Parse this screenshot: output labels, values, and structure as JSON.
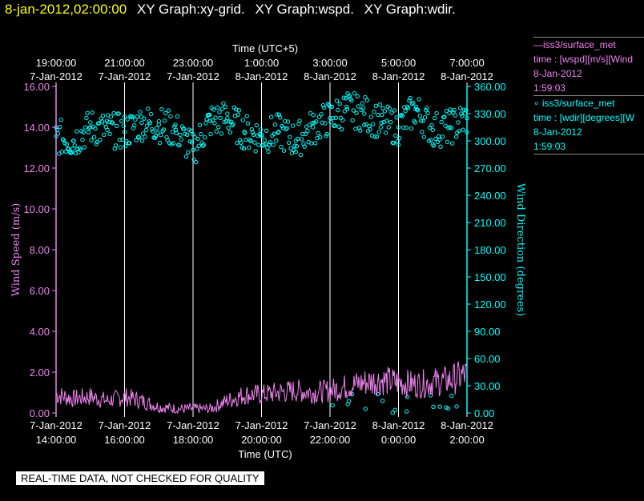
{
  "header": {
    "timestamp": "8-jan-2012,02:00:00",
    "title1": "XY Graph:xy-grid.",
    "title2": "XY Graph:wspd.",
    "title3": "XY Graph:wdir."
  },
  "legend": {
    "wspd": {
      "name": "—iss3/surface_met",
      "var": "time : [wspd][m/s][Wind",
      "date": "8-Jan-2012",
      "time": "1:59:03"
    },
    "wdir": {
      "name": "∘ iss3/surface_met",
      "var": "time : [wdir][degrees][W",
      "date": "8-Jan-2012",
      "time": "1:59:03"
    }
  },
  "footer": "REAL-TIME DATA, NOT CHECKED FOR QUALITY",
  "colors": {
    "wspd": "#ee82ee",
    "wdir": "#00ffff",
    "grid": "#ffffff",
    "axis_left": "#ee82ee",
    "axis_right": "#00ffff"
  },
  "chart_data": {
    "type": "line",
    "top_axis_title": "Time (UTC+5)",
    "bottom_axis_title": "Time (UTC)",
    "ylabel": "Wind Speed (m/s)",
    "y2label": "Wind Direction (degrees)",
    "x_range_hours": [
      0,
      12
    ],
    "ylim": [
      0,
      16
    ],
    "y2lim": [
      0,
      360
    ],
    "y_ticks": [
      "0.00",
      "2.00",
      "4.00",
      "6.00",
      "8.00",
      "10.00",
      "12.00",
      "14.00",
      "16.00"
    ],
    "y2_ticks": [
      "0.00",
      "30.00",
      "60.00",
      "90.00",
      "120.00",
      "150.00",
      "180.00",
      "210.00",
      "240.00",
      "270.00",
      "300.00",
      "330.00",
      "360.00"
    ],
    "bottom_ticks": [
      {
        "hour": 0,
        "date": "7-Jan-2012",
        "time": "14:00:00"
      },
      {
        "hour": 2,
        "date": "7-Jan-2012",
        "time": "16:00:00"
      },
      {
        "hour": 4,
        "date": "7-Jan-2012",
        "time": "18:00:00"
      },
      {
        "hour": 6,
        "date": "7-Jan-2012",
        "time": "20:00:00"
      },
      {
        "hour": 8,
        "date": "7-Jan-2012",
        "time": "22:00:00"
      },
      {
        "hour": 10,
        "date": "8-Jan-2012",
        "time": "0:00:00"
      },
      {
        "hour": 12,
        "date": "8-Jan-2012",
        "time": "2:00:00"
      }
    ],
    "top_ticks": [
      {
        "hour": 0,
        "time": "19:00:00",
        "date": "7-Jan-2012"
      },
      {
        "hour": 2,
        "time": "21:00:00",
        "date": "7-Jan-2012"
      },
      {
        "hour": 4,
        "time": "23:00:00",
        "date": "7-Jan-2012"
      },
      {
        "hour": 6,
        "time": "1:00:00",
        "date": "8-Jan-2012"
      },
      {
        "hour": 8,
        "time": "3:00:00",
        "date": "8-Jan-2012"
      },
      {
        "hour": 10,
        "time": "5:00:00",
        "date": "8-Jan-2012"
      },
      {
        "hour": 12,
        "time": "7:00:00",
        "date": "8-Jan-2012"
      }
    ],
    "series": [
      {
        "name": "wspd",
        "axis": "left",
        "x": [
          0,
          0.5,
          1,
          1.5,
          2,
          2.5,
          3,
          3.5,
          4,
          4.5,
          5,
          5.5,
          6,
          6.5,
          7,
          7.5,
          8,
          8.5,
          9,
          9.5,
          10,
          10.5,
          11,
          11.5,
          12
        ],
        "values": [
          0.9,
          0.7,
          0.8,
          0.6,
          0.8,
          0.6,
          0.3,
          0.2,
          0.2,
          0.2,
          0.6,
          0.9,
          0.9,
          1.0,
          1.1,
          1.0,
          1.1,
          1.3,
          1.5,
          1.6,
          1.5,
          1.4,
          1.5,
          1.6,
          1.9
        ]
      },
      {
        "name": "wdir",
        "axis": "right",
        "x": [
          0,
          0.5,
          1,
          1.5,
          2,
          2.5,
          3,
          3.5,
          4,
          4.5,
          5,
          5.5,
          6,
          6.5,
          7,
          7.5,
          8,
          8.5,
          9,
          9.5,
          10,
          10.5,
          11,
          11.5,
          12
        ],
        "values": [
          305,
          300,
          315,
          312,
          310,
          320,
          318,
          312,
          290,
          322,
          325,
          310,
          305,
          310,
          300,
          315,
          325,
          335,
          330,
          320,
          315,
          335,
          312,
          315,
          325
        ]
      }
    ]
  }
}
